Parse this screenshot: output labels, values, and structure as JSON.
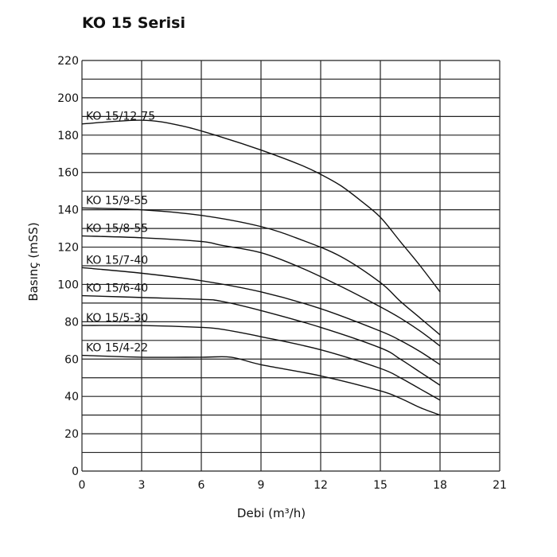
{
  "chart_data": {
    "type": "line",
    "title": "KO 15 Serisi",
    "xlabel": "Debi (m³/h)",
    "ylabel": "Basınç (mSS)",
    "xlim": [
      0,
      21
    ],
    "ylim": [
      0,
      220
    ],
    "x_ticks": [
      0,
      3,
      6,
      9,
      12,
      15,
      18,
      21
    ],
    "y_ticks": [
      0,
      20,
      40,
      60,
      80,
      100,
      120,
      140,
      160,
      180,
      200,
      220
    ],
    "grid": true,
    "series": [
      {
        "name": "KO 15/12-75",
        "x": [
          0,
          3,
          5,
          7,
          9,
          11,
          12,
          13,
          14,
          15,
          16,
          17,
          18
        ],
        "y": [
          186,
          188,
          185,
          179,
          172,
          164,
          159,
          153,
          145,
          136,
          123,
          110,
          96
        ]
      },
      {
        "name": "KO 15/9-55",
        "x": [
          0,
          3,
          6,
          9,
          11,
          13,
          15,
          16,
          17,
          18
        ],
        "y": [
          141,
          140,
          137,
          131,
          124,
          115,
          101,
          91,
          82,
          73
        ]
      },
      {
        "name": "KO 15/8-55",
        "x": [
          0,
          3,
          6,
          7,
          9,
          11,
          13,
          15,
          16,
          17,
          18
        ],
        "y": [
          126,
          125,
          123,
          121,
          117,
          109,
          99,
          88,
          82,
          75,
          67
        ]
      },
      {
        "name": "KO 15/7-40",
        "x": [
          0,
          3,
          6,
          9,
          12,
          15,
          16,
          17,
          18
        ],
        "y": [
          109,
          106,
          102,
          96,
          87,
          75,
          70,
          64,
          57
        ]
      },
      {
        "name": "KO 15/6-40",
        "x": [
          0,
          3,
          6,
          7,
          9,
          12,
          15,
          16,
          17,
          18
        ],
        "y": [
          94,
          93,
          92,
          91,
          86,
          77,
          66,
          60,
          53,
          46
        ]
      },
      {
        "name": "KO 15/5-30",
        "x": [
          0,
          3,
          6,
          7,
          9,
          12,
          15,
          16,
          17,
          18
        ],
        "y": [
          78,
          78,
          77,
          76,
          72,
          65,
          55,
          50,
          44,
          38
        ]
      },
      {
        "name": "KO 15/4-22",
        "x": [
          0,
          3,
          6,
          7.5,
          9,
          12,
          15,
          16,
          17,
          18
        ],
        "y": [
          62,
          61,
          61,
          61,
          57,
          51,
          43,
          39,
          34,
          30
        ]
      }
    ]
  }
}
